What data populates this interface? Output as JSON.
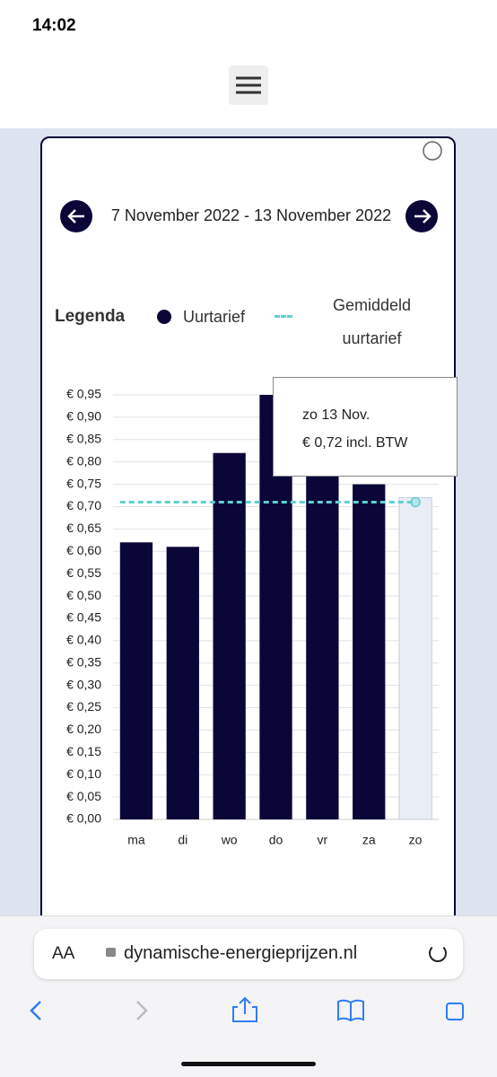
{
  "status_bar": {
    "time": "14:02"
  },
  "navigation": {
    "date_range": "7 November 2022 - 13 November 2022"
  },
  "browser": {
    "text_size": "AA",
    "url": "dynamische-energieprijzen.nl"
  },
  "chart_data": {
    "type": "bar",
    "legend_title": "Legenda",
    "categories": [
      "ma",
      "di",
      "wo",
      "do",
      "vr",
      "za",
      "zo"
    ],
    "series": [
      {
        "name": "Uurtarief",
        "color": "#0a0638",
        "values": [
          0.62,
          0.61,
          0.82,
          0.95,
          0.8,
          0.75,
          0.72
        ]
      }
    ],
    "highlight_index": 6,
    "highlight_color": "#e9edf6",
    "average": {
      "name": "Gemiddeld uurtarief",
      "color": "#5fd0d0",
      "value": 0.71
    },
    "tooltip": {
      "title": "zo 13 Nov.",
      "text": "€ 0,72 incl. BTW"
    },
    "ylim": [
      0,
      0.95
    ],
    "yticks": [
      {
        "value": 0,
        "label": "€ 0,00"
      },
      {
        "value": 0.05,
        "label": "€ 0,05"
      },
      {
        "value": 0.1,
        "label": "€ 0,10"
      },
      {
        "value": 0.15,
        "label": "€ 0,15"
      },
      {
        "value": 0.2,
        "label": "€ 0,20"
      },
      {
        "value": 0.25,
        "label": "€ 0,25"
      },
      {
        "value": 0.3,
        "label": "€ 0,30"
      },
      {
        "value": 0.35,
        "label": "€ 0,35"
      },
      {
        "value": 0.4,
        "label": "€ 0,40"
      },
      {
        "value": 0.45,
        "label": "€ 0,45"
      },
      {
        "value": 0.5,
        "label": "€ 0,50"
      },
      {
        "value": 0.55,
        "label": "€ 0,55"
      },
      {
        "value": 0.6,
        "label": "€ 0,60"
      },
      {
        "value": 0.65,
        "label": "€ 0,65"
      },
      {
        "value": 0.7,
        "label": "€ 0,70"
      },
      {
        "value": 0.75,
        "label": "€ 0,75"
      },
      {
        "value": 0.8,
        "label": "€ 0,80"
      },
      {
        "value": 0.85,
        "label": "€ 0,85"
      },
      {
        "value": 0.9,
        "label": "€ 0,90"
      },
      {
        "value": 0.95,
        "label": "€ 0,95"
      }
    ],
    "grid": true
  }
}
